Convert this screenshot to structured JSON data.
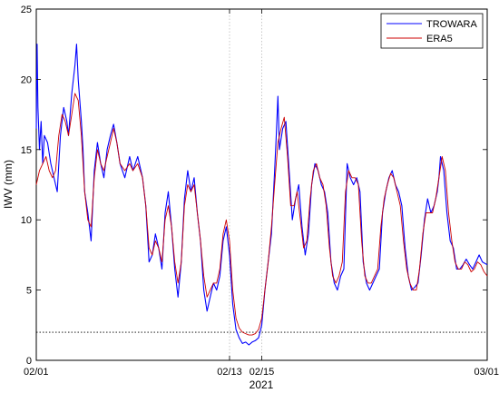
{
  "chart_data": {
    "type": "line",
    "title": "",
    "xlabel": "2021",
    "ylabel": "IWV (mm)",
    "x_unit": "day of February 2021",
    "xlim": [
      1,
      29
    ],
    "ylim": [
      0,
      25
    ],
    "yticks": [
      0,
      5,
      10,
      15,
      20,
      25
    ],
    "xticks": [
      {
        "value": 1,
        "label": "02/01"
      },
      {
        "value": 13,
        "label": "02/13"
      },
      {
        "value": 15,
        "label": "02/15"
      },
      {
        "value": 29,
        "label": "03/01"
      }
    ],
    "vertical_markers": [
      13,
      15
    ],
    "threshold_line": 2,
    "grid": false,
    "legend_position": "top-right",
    "series": [
      {
        "name": "TROWARA",
        "color": "#0000ff",
        "points": [
          [
            1.0,
            16.5
          ],
          [
            1.05,
            22.5
          ],
          [
            1.1,
            18.0
          ],
          [
            1.2,
            15.0
          ],
          [
            1.3,
            17.0
          ],
          [
            1.4,
            14.0
          ],
          [
            1.5,
            16.0
          ],
          [
            1.7,
            15.5
          ],
          [
            1.9,
            14.0
          ],
          [
            2.1,
            13.0
          ],
          [
            2.3,
            12.0
          ],
          [
            2.5,
            16.0
          ],
          [
            2.7,
            18.0
          ],
          [
            2.9,
            17.0
          ],
          [
            3.0,
            16.0
          ],
          [
            3.2,
            19.0
          ],
          [
            3.4,
            21.0
          ],
          [
            3.5,
            22.5
          ],
          [
            3.6,
            20.0
          ],
          [
            3.8,
            17.0
          ],
          [
            3.9,
            15.0
          ],
          [
            4.0,
            12.0
          ],
          [
            4.2,
            10.5
          ],
          [
            4.4,
            8.5
          ],
          [
            4.6,
            13.5
          ],
          [
            4.8,
            15.5
          ],
          [
            5.0,
            14.0
          ],
          [
            5.2,
            13.0
          ],
          [
            5.4,
            15.0
          ],
          [
            5.6,
            16.0
          ],
          [
            5.8,
            16.8
          ],
          [
            6.0,
            15.5
          ],
          [
            6.2,
            14.0
          ],
          [
            6.5,
            13.0
          ],
          [
            6.8,
            14.5
          ],
          [
            7.0,
            13.5
          ],
          [
            7.3,
            14.5
          ],
          [
            7.6,
            13.0
          ],
          [
            7.8,
            11.0
          ],
          [
            8.0,
            7.0
          ],
          [
            8.2,
            7.5
          ],
          [
            8.4,
            9.0
          ],
          [
            8.6,
            8.0
          ],
          [
            8.8,
            6.5
          ],
          [
            9.0,
            10.5
          ],
          [
            9.2,
            12.0
          ],
          [
            9.4,
            9.5
          ],
          [
            9.6,
            6.5
          ],
          [
            9.8,
            4.5
          ],
          [
            10.0,
            7.0
          ],
          [
            10.2,
            11.5
          ],
          [
            10.4,
            13.5
          ],
          [
            10.6,
            12.0
          ],
          [
            10.8,
            13.0
          ],
          [
            11.0,
            10.5
          ],
          [
            11.2,
            8.5
          ],
          [
            11.4,
            5.0
          ],
          [
            11.6,
            3.5
          ],
          [
            11.8,
            4.5
          ],
          [
            12.0,
            5.5
          ],
          [
            12.2,
            5.0
          ],
          [
            12.4,
            6.0
          ],
          [
            12.6,
            8.5
          ],
          [
            12.8,
            9.5
          ],
          [
            13.0,
            7.5
          ],
          [
            13.2,
            4.0
          ],
          [
            13.4,
            2.2
          ],
          [
            13.6,
            1.6
          ],
          [
            13.8,
            1.2
          ],
          [
            14.0,
            1.3
          ],
          [
            14.2,
            1.1
          ],
          [
            14.4,
            1.3
          ],
          [
            14.6,
            1.4
          ],
          [
            14.8,
            1.6
          ],
          [
            15.0,
            2.5
          ],
          [
            15.2,
            5.0
          ],
          [
            15.4,
            7.0
          ],
          [
            15.6,
            9.0
          ],
          [
            15.8,
            13.5
          ],
          [
            15.9,
            16.0
          ],
          [
            16.0,
            18.8
          ],
          [
            16.1,
            15.0
          ],
          [
            16.3,
            16.5
          ],
          [
            16.5,
            17.0
          ],
          [
            16.7,
            13.5
          ],
          [
            16.9,
            10.0
          ],
          [
            17.1,
            11.5
          ],
          [
            17.3,
            12.5
          ],
          [
            17.5,
            9.5
          ],
          [
            17.7,
            7.5
          ],
          [
            17.9,
            9.0
          ],
          [
            18.1,
            12.5
          ],
          [
            18.3,
            14.0
          ],
          [
            18.5,
            13.5
          ],
          [
            18.7,
            12.5
          ],
          [
            18.9,
            12.0
          ],
          [
            19.1,
            10.5
          ],
          [
            19.3,
            7.0
          ],
          [
            19.5,
            5.5
          ],
          [
            19.7,
            5.0
          ],
          [
            19.9,
            6.0
          ],
          [
            20.1,
            6.5
          ],
          [
            20.3,
            14.0
          ],
          [
            20.5,
            13.0
          ],
          [
            20.7,
            12.5
          ],
          [
            20.9,
            13.0
          ],
          [
            21.1,
            12.0
          ],
          [
            21.3,
            7.0
          ],
          [
            21.5,
            5.5
          ],
          [
            21.7,
            5.0
          ],
          [
            21.9,
            5.5
          ],
          [
            22.1,
            6.0
          ],
          [
            22.3,
            6.5
          ],
          [
            22.5,
            10.5
          ],
          [
            22.7,
            12.0
          ],
          [
            22.9,
            13.0
          ],
          [
            23.1,
            13.5
          ],
          [
            23.3,
            12.5
          ],
          [
            23.5,
            12.0
          ],
          [
            23.7,
            11.0
          ],
          [
            23.9,
            8.0
          ],
          [
            24.1,
            6.0
          ],
          [
            24.3,
            5.0
          ],
          [
            24.5,
            5.2
          ],
          [
            24.7,
            5.5
          ],
          [
            24.9,
            7.5
          ],
          [
            25.1,
            10.0
          ],
          [
            25.3,
            11.5
          ],
          [
            25.5,
            10.5
          ],
          [
            25.7,
            11.0
          ],
          [
            25.9,
            12.0
          ],
          [
            26.0,
            13.0
          ],
          [
            26.1,
            14.5
          ],
          [
            26.3,
            13.5
          ],
          [
            26.5,
            10.5
          ],
          [
            26.7,
            8.5
          ],
          [
            26.9,
            8.0
          ],
          [
            27.1,
            6.5
          ],
          [
            27.3,
            6.5
          ],
          [
            27.5,
            6.8
          ],
          [
            27.7,
            7.2
          ],
          [
            27.9,
            6.8
          ],
          [
            28.1,
            6.5
          ],
          [
            28.3,
            7.0
          ],
          [
            28.5,
            7.5
          ],
          [
            28.7,
            7.0
          ],
          [
            29.0,
            6.8
          ]
        ]
      },
      {
        "name": "ERA5",
        "color": "#cc0000",
        "points": [
          [
            1.0,
            12.5
          ],
          [
            1.2,
            13.5
          ],
          [
            1.4,
            14.0
          ],
          [
            1.6,
            14.5
          ],
          [
            1.8,
            13.5
          ],
          [
            2.0,
            13.0
          ],
          [
            2.2,
            13.5
          ],
          [
            2.4,
            16.0
          ],
          [
            2.6,
            17.5
          ],
          [
            2.8,
            17.0
          ],
          [
            3.0,
            16.0
          ],
          [
            3.2,
            17.5
          ],
          [
            3.4,
            19.0
          ],
          [
            3.6,
            18.5
          ],
          [
            3.8,
            16.0
          ],
          [
            4.0,
            12.0
          ],
          [
            4.2,
            10.0
          ],
          [
            4.4,
            9.5
          ],
          [
            4.6,
            13.0
          ],
          [
            4.8,
            15.0
          ],
          [
            5.0,
            14.0
          ],
          [
            5.2,
            13.5
          ],
          [
            5.4,
            14.5
          ],
          [
            5.6,
            15.5
          ],
          [
            5.8,
            16.5
          ],
          [
            6.0,
            15.5
          ],
          [
            6.2,
            14.0
          ],
          [
            6.5,
            13.5
          ],
          [
            6.8,
            14.0
          ],
          [
            7.0,
            13.5
          ],
          [
            7.3,
            14.0
          ],
          [
            7.6,
            13.0
          ],
          [
            7.8,
            11.0
          ],
          [
            8.0,
            8.0
          ],
          [
            8.2,
            7.5
          ],
          [
            8.4,
            8.5
          ],
          [
            8.6,
            8.0
          ],
          [
            8.8,
            7.0
          ],
          [
            9.0,
            10.0
          ],
          [
            9.2,
            11.0
          ],
          [
            9.4,
            9.5
          ],
          [
            9.6,
            7.0
          ],
          [
            9.8,
            5.5
          ],
          [
            10.0,
            7.0
          ],
          [
            10.2,
            11.0
          ],
          [
            10.4,
            12.5
          ],
          [
            10.6,
            12.0
          ],
          [
            10.8,
            12.5
          ],
          [
            11.0,
            10.5
          ],
          [
            11.2,
            8.5
          ],
          [
            11.4,
            6.0
          ],
          [
            11.6,
            4.5
          ],
          [
            11.8,
            5.0
          ],
          [
            12.0,
            5.5
          ],
          [
            12.2,
            5.5
          ],
          [
            12.4,
            6.5
          ],
          [
            12.6,
            9.0
          ],
          [
            12.8,
            10.0
          ],
          [
            13.0,
            8.5
          ],
          [
            13.2,
            5.0
          ],
          [
            13.4,
            3.0
          ],
          [
            13.6,
            2.3
          ],
          [
            13.8,
            2.0
          ],
          [
            14.0,
            1.9
          ],
          [
            14.2,
            1.8
          ],
          [
            14.4,
            1.8
          ],
          [
            14.6,
            1.9
          ],
          [
            14.8,
            2.2
          ],
          [
            15.0,
            3.0
          ],
          [
            15.2,
            5.0
          ],
          [
            15.4,
            7.0
          ],
          [
            15.6,
            9.5
          ],
          [
            15.8,
            12.5
          ],
          [
            16.0,
            15.5
          ],
          [
            16.2,
            16.5
          ],
          [
            16.4,
            17.3
          ],
          [
            16.6,
            14.5
          ],
          [
            16.8,
            11.0
          ],
          [
            17.0,
            11.0
          ],
          [
            17.2,
            12.0
          ],
          [
            17.4,
            10.0
          ],
          [
            17.6,
            8.0
          ],
          [
            17.8,
            8.5
          ],
          [
            18.0,
            11.5
          ],
          [
            18.2,
            13.5
          ],
          [
            18.4,
            14.0
          ],
          [
            18.6,
            13.0
          ],
          [
            18.8,
            12.5
          ],
          [
            19.0,
            11.0
          ],
          [
            19.2,
            8.0
          ],
          [
            19.4,
            6.0
          ],
          [
            19.6,
            5.5
          ],
          [
            19.8,
            6.0
          ],
          [
            20.0,
            7.0
          ],
          [
            20.2,
            12.0
          ],
          [
            20.4,
            13.5
          ],
          [
            20.6,
            13.0
          ],
          [
            20.8,
            13.0
          ],
          [
            21.0,
            12.5
          ],
          [
            21.2,
            8.5
          ],
          [
            21.4,
            6.0
          ],
          [
            21.6,
            5.5
          ],
          [
            21.8,
            5.5
          ],
          [
            22.0,
            6.0
          ],
          [
            22.2,
            6.5
          ],
          [
            22.4,
            9.5
          ],
          [
            22.6,
            11.5
          ],
          [
            22.8,
            12.5
          ],
          [
            23.0,
            13.3
          ],
          [
            23.2,
            13.0
          ],
          [
            23.4,
            12.0
          ],
          [
            23.6,
            11.0
          ],
          [
            23.8,
            8.5
          ],
          [
            24.0,
            6.5
          ],
          [
            24.2,
            5.5
          ],
          [
            24.4,
            5.0
          ],
          [
            24.6,
            5.0
          ],
          [
            24.8,
            6.5
          ],
          [
            25.0,
            9.0
          ],
          [
            25.2,
            10.5
          ],
          [
            25.4,
            10.5
          ],
          [
            25.6,
            10.5
          ],
          [
            25.8,
            11.5
          ],
          [
            26.0,
            13.0
          ],
          [
            26.2,
            14.5
          ],
          [
            26.4,
            13.5
          ],
          [
            26.6,
            10.5
          ],
          [
            26.8,
            8.5
          ],
          [
            27.0,
            7.0
          ],
          [
            27.2,
            6.5
          ],
          [
            27.4,
            6.5
          ],
          [
            27.6,
            7.0
          ],
          [
            27.8,
            6.8
          ],
          [
            28.0,
            6.3
          ],
          [
            28.2,
            6.5
          ],
          [
            28.4,
            7.0
          ],
          [
            28.6,
            6.8
          ],
          [
            28.8,
            6.3
          ],
          [
            29.0,
            6.0
          ]
        ]
      }
    ]
  }
}
